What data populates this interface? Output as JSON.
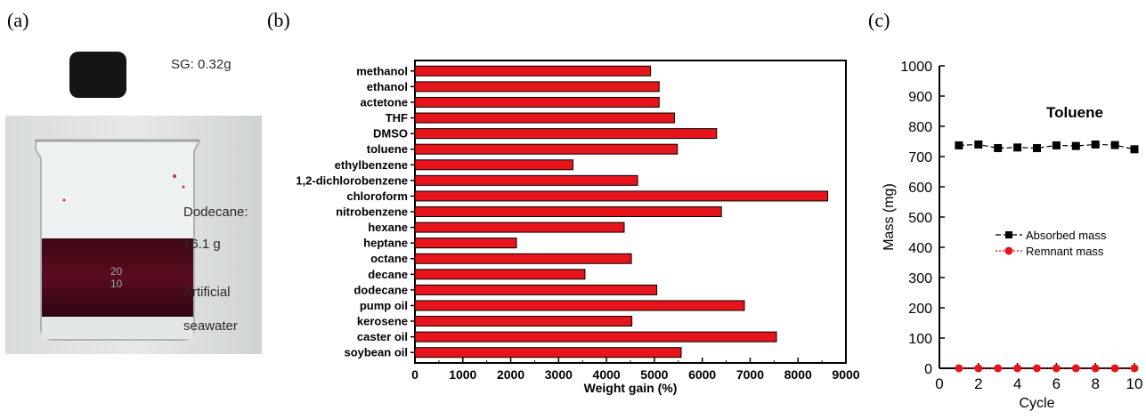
{
  "panels": {
    "a": {
      "letter": "(a)"
    },
    "b": {
      "letter": "(b)"
    },
    "c": {
      "letter": "(c)"
    }
  },
  "photo": {
    "sample_mass": "SG: 0.32g",
    "oil_label_line1": "Dodecane:",
    "oil_label_line2": "16.1 g",
    "water_label_line1": "Artificial",
    "water_label_line2": "seawater",
    "beaker_mark_1": "20",
    "beaker_mark_2": "10",
    "colors": {
      "oil": "#5a0d1f",
      "water": "#e9ecec",
      "sample": "#151515"
    }
  },
  "chart_data": [
    {
      "type": "bar",
      "orientation": "horizontal",
      "categories": [
        "methanol",
        "ethanol",
        "actetone",
        "THF",
        "DMSO",
        "toluene",
        "ethylbenzene",
        "1,2-dichlorobenzene",
        "chloroform",
        "nitrobenzene",
        "hexane",
        "heptane",
        "octane",
        "decane",
        "dodecane",
        "pump oil",
        "kerosene",
        "caster oil",
        "soybean oil"
      ],
      "values": [
        4920,
        5100,
        5100,
        5420,
        6300,
        5480,
        3300,
        4650,
        8620,
        6400,
        4370,
        2120,
        4520,
        3550,
        5050,
        6880,
        4530,
        7550,
        5560
      ],
      "xlabel": "Weight gain (%)",
      "xlim": [
        0,
        9000
      ],
      "xticks": [
        0,
        1000,
        2000,
        3000,
        4000,
        5000,
        6000,
        7000,
        8000,
        9000
      ],
      "bar_color": "#e8141c"
    },
    {
      "type": "line",
      "title": "Toluene",
      "xlabel": "Cycle",
      "ylabel": "Mass (mg)",
      "xlim": [
        0,
        10
      ],
      "ylim": [
        0,
        1000
      ],
      "xticks": [
        0,
        2,
        4,
        6,
        8,
        10
      ],
      "yticks": [
        0,
        100,
        200,
        300,
        400,
        500,
        600,
        700,
        800,
        900,
        1000
      ],
      "x": [
        1,
        2,
        3,
        4,
        5,
        6,
        7,
        8,
        9,
        10
      ],
      "series": [
        {
          "name": "Absorbed mass",
          "values": [
            737,
            740,
            728,
            730,
            728,
            737,
            735,
            740,
            738,
            724
          ],
          "color": "#000000",
          "marker": "square"
        },
        {
          "name": "Remnant mass",
          "values": [
            0,
            0,
            0,
            0,
            0,
            0,
            0,
            0,
            0,
            0
          ],
          "color": "#e8141c",
          "marker": "circle"
        }
      ],
      "legend_position": "right-middle"
    }
  ]
}
